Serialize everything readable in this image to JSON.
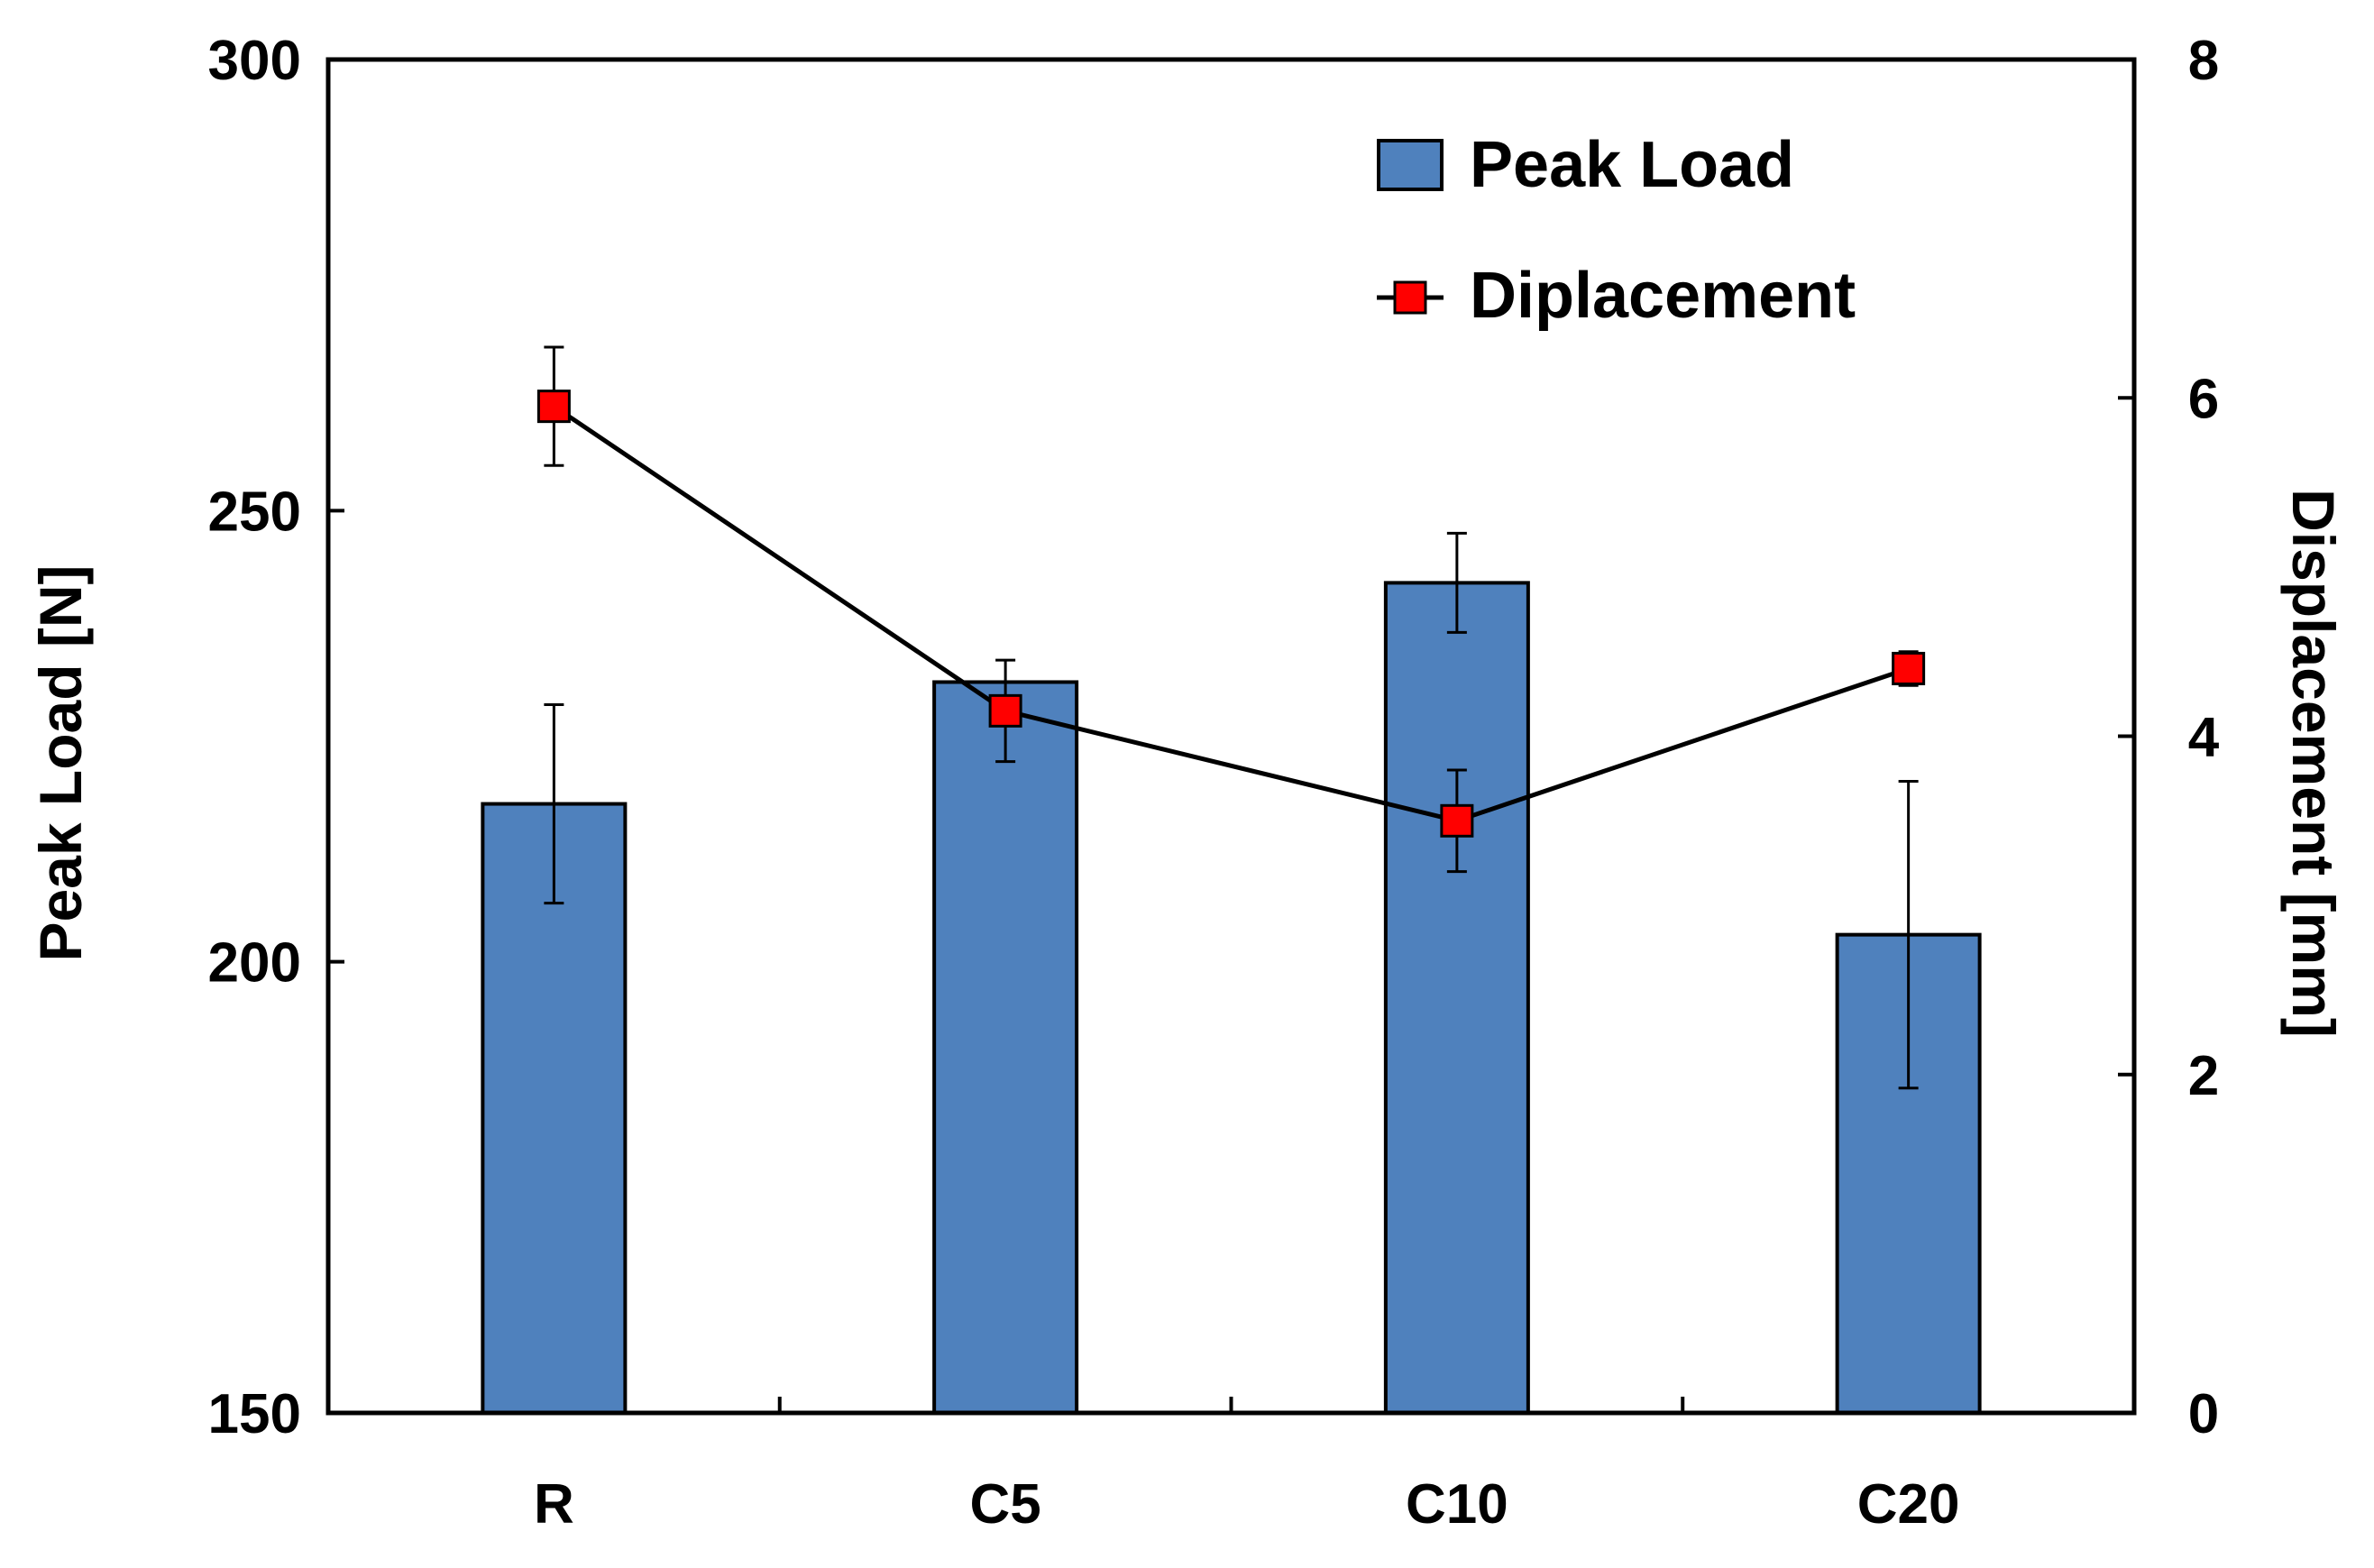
{
  "chart_data": {
    "type": "bar",
    "categories": [
      "R",
      "C5",
      "C10",
      "C20"
    ],
    "series": [
      {
        "name": "Peak Load",
        "type": "bar",
        "axis": "left",
        "values": [
          217.5,
          231,
          242,
          203
        ],
        "errors": [
          11,
          0,
          5.5,
          17
        ],
        "color": "#4F81BD"
      },
      {
        "name": "Diplacement",
        "type": "line",
        "axis": "right",
        "values": [
          5.95,
          4.15,
          3.5,
          4.4
        ],
        "errors": [
          0.35,
          0.3,
          0.3,
          0.1
        ],
        "color": "#FF0000"
      }
    ],
    "ylabel": "Peak Load [N]",
    "y2label": "Displacement [mm]",
    "ylim": [
      150,
      300
    ],
    "y2lim": [
      0,
      8
    ],
    "yticks": [
      150,
      200,
      250,
      300
    ],
    "y2ticks": [
      0,
      2,
      4,
      6,
      8
    ],
    "grid": false,
    "legend_position": "top-right"
  }
}
